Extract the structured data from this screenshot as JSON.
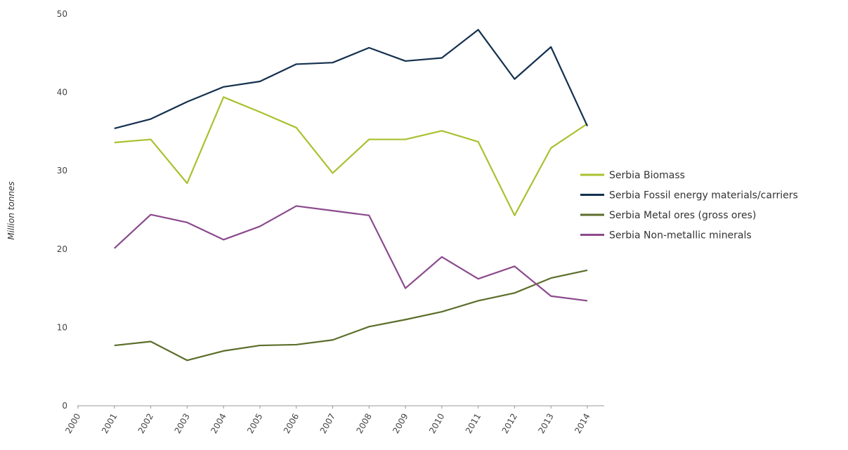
{
  "chart_data": {
    "type": "line",
    "ylabel": "Million tonnes",
    "x": [
      2001,
      2002,
      2003,
      2004,
      2005,
      2006,
      2007,
      2008,
      2009,
      2010,
      2011,
      2012,
      2013,
      2014
    ],
    "xlim": [
      2000,
      2014
    ],
    "xticks": [
      2000,
      2001,
      2002,
      2003,
      2004,
      2005,
      2006,
      2007,
      2008,
      2009,
      2010,
      2011,
      2012,
      2013,
      2014
    ],
    "ylim": [
      0,
      50
    ],
    "yticks": [
      0,
      10,
      20,
      30,
      40,
      50
    ],
    "grid": false,
    "legend": "right",
    "series": [
      {
        "name": "Serbia Biomass",
        "color": "#a9c12f",
        "values": [
          33.6,
          34.0,
          28.4,
          39.4,
          37.5,
          35.5,
          29.7,
          34.0,
          34.0,
          35.1,
          33.7,
          24.3,
          32.9,
          36.0
        ]
      },
      {
        "name": "Serbia Fossil energy materials/carriers",
        "color": "#14304f",
        "values": [
          35.4,
          36.6,
          38.8,
          40.7,
          41.4,
          43.6,
          43.8,
          45.7,
          44.0,
          44.4,
          48.0,
          41.7,
          45.8,
          35.7
        ]
      },
      {
        "name": "Serbia Metal ores (gross ores)",
        "color": "#5b6e2a",
        "values": [
          7.7,
          8.2,
          5.8,
          7.0,
          7.7,
          7.8,
          8.4,
          10.1,
          11.0,
          12.0,
          13.4,
          14.4,
          16.3,
          17.3
        ]
      },
      {
        "name": "Serbia Non-metallic minerals",
        "color": "#8b4a8d",
        "values": [
          20.1,
          24.4,
          23.4,
          21.2,
          22.9,
          25.5,
          24.9,
          24.3,
          15.0,
          19.0,
          16.2,
          17.8,
          14.0,
          13.4
        ]
      }
    ]
  }
}
